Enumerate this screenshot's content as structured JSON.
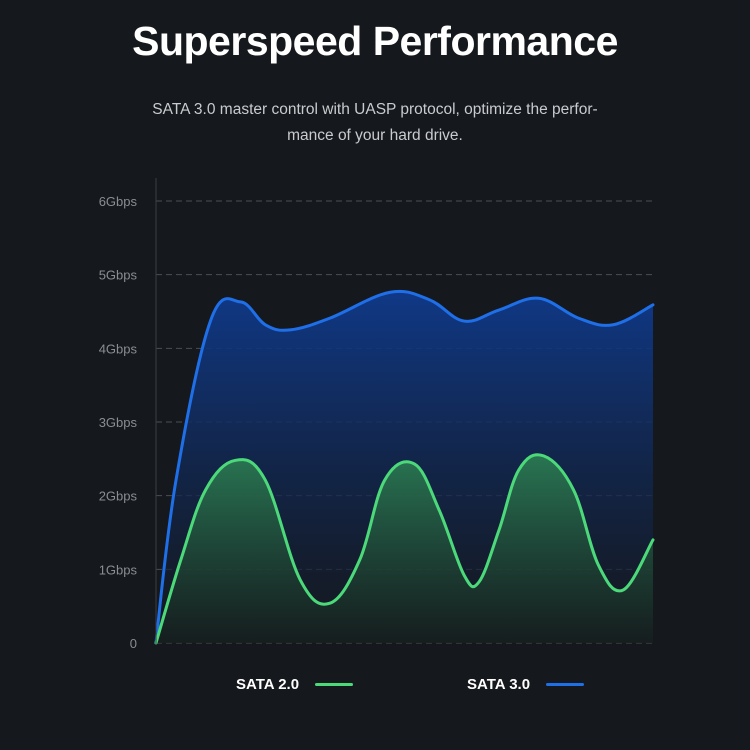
{
  "header": {
    "title": "Superspeed Performance",
    "subtitle_line1": "SATA 3.0 master control with UASP protocol, optimize the perfor-",
    "subtitle_line2": "mance of your hard drive."
  },
  "chart_data": {
    "type": "area",
    "title": "",
    "xlabel": "",
    "ylabel": "",
    "ylim": [
      0,
      6
    ],
    "yticks": [
      0,
      1,
      2,
      3,
      4,
      5,
      6
    ],
    "ytick_labels": [
      "0",
      "1Gbps",
      "2Gbps",
      "3Gbps",
      "4Gbps",
      "5Gbps",
      "6Gbps"
    ],
    "grid": "horizontal dashed",
    "legend_position": "bottom",
    "series": [
      {
        "name": "SATA 2.0",
        "color": "#4cd97a",
        "points": [
          [
            0,
            0
          ],
          [
            5,
            1.13
          ],
          [
            10,
            2.08
          ],
          [
            16,
            2.48
          ],
          [
            22,
            2.21
          ],
          [
            29,
            0.86
          ],
          [
            35,
            0.54
          ],
          [
            41,
            1.13
          ],
          [
            46,
            2.21
          ],
          [
            52,
            2.43
          ],
          [
            57,
            1.8
          ],
          [
            62,
            0.92
          ],
          [
            65,
            0.83
          ],
          [
            69,
            1.53
          ],
          [
            73,
            2.35
          ],
          [
            78,
            2.54
          ],
          [
            84,
            2.08
          ],
          [
            89,
            1.06
          ],
          [
            94,
            0.72
          ],
          [
            100,
            1.4
          ]
        ]
      },
      {
        "name": "SATA 3.0",
        "color": "#1f6fe8",
        "points": [
          [
            0,
            0
          ],
          [
            4,
            2.2
          ],
          [
            11,
            4.38
          ],
          [
            17,
            4.63
          ],
          [
            22,
            4.32
          ],
          [
            27,
            4.25
          ],
          [
            35,
            4.41
          ],
          [
            47,
            4.76
          ],
          [
            55,
            4.66
          ],
          [
            62,
            4.37
          ],
          [
            69,
            4.52
          ],
          [
            77,
            4.68
          ],
          [
            85,
            4.41
          ],
          [
            92,
            4.32
          ],
          [
            100,
            4.59
          ]
        ]
      }
    ]
  }
}
